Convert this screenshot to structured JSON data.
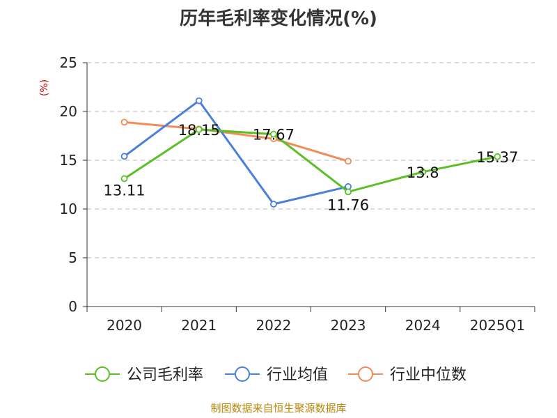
{
  "chart_data": {
    "type": "line",
    "title": "历年毛利率变化情况(%)",
    "unit_label": "(%)",
    "categories": [
      "2020",
      "2021",
      "2022",
      "2023",
      "2024",
      "2025Q1"
    ],
    "ylim": [
      0,
      25
    ],
    "yticks": [
      0,
      5,
      10,
      15,
      20,
      25
    ],
    "grid": true,
    "legend_position": "bottom",
    "series": [
      {
        "name": "公司毛利率",
        "color": "#5cbf26",
        "values": [
          13.11,
          18.15,
          17.67,
          11.76,
          13.8,
          15.37
        ],
        "labels": [
          "13.11",
          "18.15",
          "17.67",
          "11.76",
          "13.8",
          "15.37"
        ]
      },
      {
        "name": "行业均值",
        "color": "#4a7fdc",
        "values": [
          15.4,
          21.1,
          10.5,
          12.3,
          null,
          null
        ]
      },
      {
        "name": "行业中位数",
        "color": "#f08c58",
        "values": [
          18.9,
          18.2,
          17.2,
          14.9,
          null,
          null
        ]
      }
    ]
  },
  "footer": {
    "source": "制图数据来自恒生聚源数据库"
  }
}
